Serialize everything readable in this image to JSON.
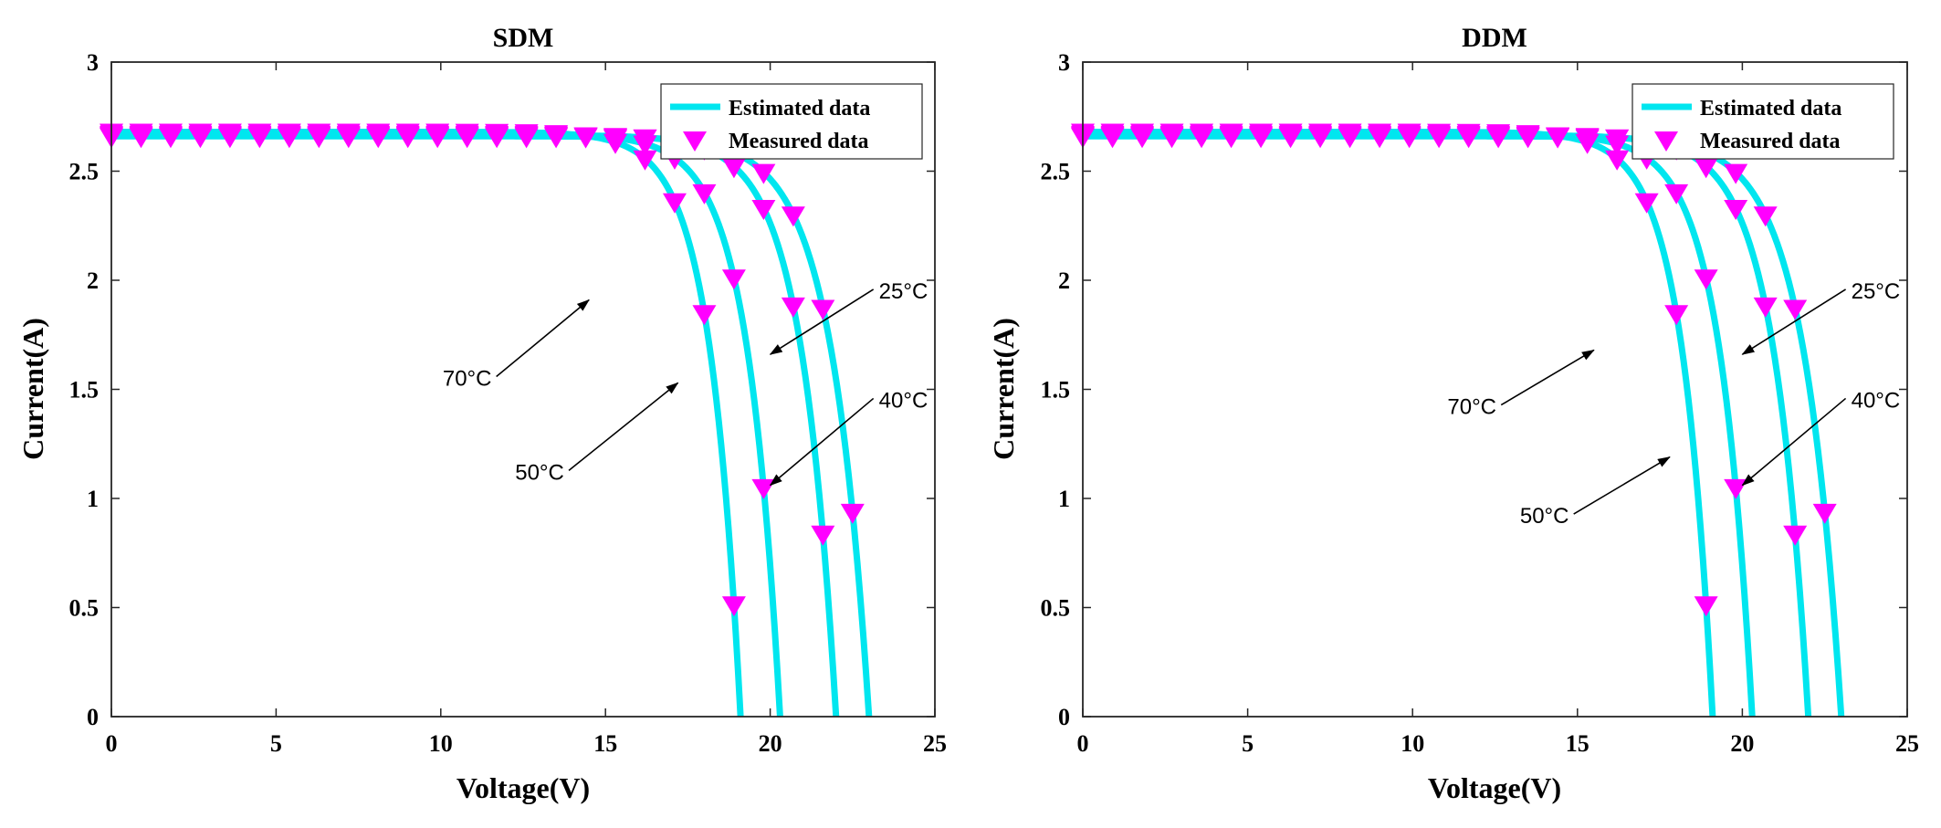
{
  "chart_data": [
    {
      "type": "line",
      "title": "SDM",
      "xlabel": "Voltage(V)",
      "ylabel": "Current(A)",
      "xlim": [
        0,
        25
      ],
      "ylim": [
        0,
        3
      ],
      "xticks": [
        "0",
        "5",
        "10",
        "15",
        "20",
        "25"
      ],
      "yticks": [
        "0",
        "0.5",
        "1",
        "1.5",
        "2",
        "2.5",
        "3"
      ],
      "grid": false,
      "legend": {
        "position": "top-right",
        "entries": [
          "Estimated data",
          "Measured data"
        ]
      },
      "colors": {
        "estimated": "#00e6ef",
        "measured": "#ff00ff",
        "annotation": "#000000"
      },
      "series": [
        {
          "name": "25°C",
          "model": {
            "isc": 2.66,
            "voc": 23.0,
            "a": 1.15
          },
          "measured_v": [
            0,
            0.9,
            1.8,
            2.7,
            3.6,
            4.5,
            5.4,
            6.3,
            7.2,
            8.1,
            9.0,
            9.9,
            10.8,
            11.7,
            12.6,
            13.5,
            14.4,
            15.3,
            16.2,
            17.1,
            18.0,
            18.9,
            19.8,
            20.7,
            21.6,
            22.5
          ]
        },
        {
          "name": "40°C",
          "model": {
            "isc": 2.665,
            "voc": 22.0,
            "a": 1.06
          },
          "measured_v": [
            0,
            0.9,
            1.8,
            2.7,
            3.6,
            4.5,
            5.4,
            6.3,
            7.2,
            8.1,
            9.0,
            9.9,
            10.8,
            11.7,
            12.6,
            13.5,
            14.4,
            15.3,
            16.2,
            17.1,
            18.0,
            18.9,
            19.8,
            20.7,
            21.6
          ]
        },
        {
          "name": "50°C",
          "model": {
            "isc": 2.67,
            "voc": 20.3,
            "a": 1.0
          },
          "measured_v": [
            0,
            0.9,
            1.8,
            2.7,
            3.6,
            4.5,
            5.4,
            6.3,
            7.2,
            8.1,
            9.0,
            9.9,
            10.8,
            11.7,
            12.6,
            13.5,
            14.4,
            15.3,
            16.2,
            17.1,
            18.0,
            18.9,
            19.8
          ]
        },
        {
          "name": "70°C",
          "model": {
            "isc": 2.68,
            "voc": 19.1,
            "a": 0.94
          },
          "measured_v": [
            0,
            0.9,
            1.8,
            2.7,
            3.6,
            4.5,
            5.4,
            6.3,
            7.2,
            8.1,
            9.0,
            9.9,
            10.8,
            11.7,
            12.6,
            13.5,
            14.4,
            15.3,
            16.2,
            17.1,
            18.0,
            18.9
          ]
        }
      ],
      "annotations": [
        {
          "text": "25°C",
          "text_at": [
            23.3,
            1.95
          ],
          "tip": [
            20.0,
            1.66
          ]
        },
        {
          "text": "40°C",
          "text_at": [
            23.3,
            1.45
          ],
          "tip": [
            20.0,
            1.06
          ]
        },
        {
          "text": "50°C",
          "text_at": [
            13.0,
            1.12
          ],
          "tip": [
            17.2,
            1.53
          ]
        },
        {
          "text": "70°C",
          "text_at": [
            10.8,
            1.55
          ],
          "tip": [
            14.5,
            1.91
          ]
        }
      ]
    },
    {
      "type": "line",
      "title": "DDM",
      "xlabel": "Voltage(V)",
      "ylabel": "Current(A)",
      "xlim": [
        0,
        25
      ],
      "ylim": [
        0,
        3
      ],
      "xticks": [
        "0",
        "5",
        "10",
        "15",
        "20",
        "25"
      ],
      "yticks": [
        "0",
        "0.5",
        "1",
        "1.5",
        "2",
        "2.5",
        "3"
      ],
      "grid": false,
      "legend": {
        "position": "top-right",
        "entries": [
          "Estimated data",
          "Measured data"
        ]
      },
      "colors": {
        "estimated": "#00e6ef",
        "measured": "#ff00ff",
        "annotation": "#000000"
      },
      "series": [
        {
          "name": "25°C",
          "model": {
            "isc": 2.66,
            "voc": 23.0,
            "a": 1.15
          },
          "measured_v": [
            0,
            0.9,
            1.8,
            2.7,
            3.6,
            4.5,
            5.4,
            6.3,
            7.2,
            8.1,
            9.0,
            9.9,
            10.8,
            11.7,
            12.6,
            13.5,
            14.4,
            15.3,
            16.2,
            17.1,
            18.0,
            18.9,
            19.8,
            20.7,
            21.6,
            22.5
          ]
        },
        {
          "name": "40°C",
          "model": {
            "isc": 2.665,
            "voc": 22.0,
            "a": 1.06
          },
          "measured_v": [
            0,
            0.9,
            1.8,
            2.7,
            3.6,
            4.5,
            5.4,
            6.3,
            7.2,
            8.1,
            9.0,
            9.9,
            10.8,
            11.7,
            12.6,
            13.5,
            14.4,
            15.3,
            16.2,
            17.1,
            18.0,
            18.9,
            19.8,
            20.7,
            21.6
          ]
        },
        {
          "name": "50°C",
          "model": {
            "isc": 2.67,
            "voc": 20.3,
            "a": 1.0
          },
          "measured_v": [
            0,
            0.9,
            1.8,
            2.7,
            3.6,
            4.5,
            5.4,
            6.3,
            7.2,
            8.1,
            9.0,
            9.9,
            10.8,
            11.7,
            12.6,
            13.5,
            14.4,
            15.3,
            16.2,
            17.1,
            18.0,
            18.9,
            19.8
          ]
        },
        {
          "name": "70°C",
          "model": {
            "isc": 2.68,
            "voc": 19.1,
            "a": 0.94
          },
          "measured_v": [
            0,
            0.9,
            1.8,
            2.7,
            3.6,
            4.5,
            5.4,
            6.3,
            7.2,
            8.1,
            9.0,
            9.9,
            10.8,
            11.7,
            12.6,
            13.5,
            14.4,
            15.3,
            16.2,
            17.1,
            18.0,
            18.9
          ]
        }
      ],
      "annotations": [
        {
          "text": "25°C",
          "text_at": [
            23.3,
            1.95
          ],
          "tip": [
            20.0,
            1.66
          ]
        },
        {
          "text": "40°C",
          "text_at": [
            23.3,
            1.45
          ],
          "tip": [
            20.0,
            1.06
          ]
        },
        {
          "text": "50°C",
          "text_at": [
            14.0,
            0.92
          ],
          "tip": [
            17.8,
            1.19
          ]
        },
        {
          "text": "70°C",
          "text_at": [
            11.8,
            1.42
          ],
          "tip": [
            15.5,
            1.68
          ]
        }
      ]
    }
  ]
}
